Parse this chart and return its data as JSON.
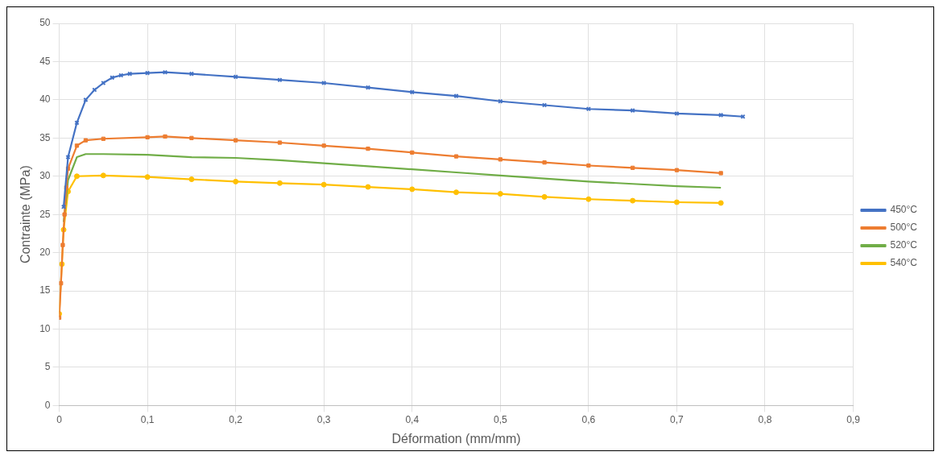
{
  "chart_data": {
    "type": "line",
    "xlabel": "Déformation (mm/mm)",
    "ylabel": "Contrainte (MPa)",
    "xlim": [
      0,
      0.9
    ],
    "ylim": [
      0,
      50
    ],
    "xticks": [
      0,
      {
        "value": 0.1,
        "label": "0,1"
      },
      {
        "value": 0.2,
        "label": "0,2"
      },
      {
        "value": 0.3,
        "label": "0,3"
      },
      {
        "value": 0.4,
        "label": "0,4"
      },
      {
        "value": 0.5,
        "label": "0,5"
      },
      {
        "value": 0.6,
        "label": "0,6"
      },
      {
        "value": 0.7,
        "label": "0,7"
      },
      {
        "value": 0.8,
        "label": "0,8"
      },
      {
        "value": 0.9,
        "label": "0,9"
      }
    ],
    "yticks": [
      0,
      5,
      10,
      15,
      20,
      25,
      30,
      35,
      40,
      45,
      50
    ],
    "grid": true,
    "legend": "right",
    "series": [
      {
        "name": "450°C",
        "color": "#4472c4",
        "marker": "cross",
        "x": [
          0.005,
          0.01,
          0.02,
          0.03,
          0.04,
          0.05,
          0.06,
          0.07,
          0.08,
          0.1,
          0.12,
          0.15,
          0.2,
          0.25,
          0.3,
          0.35,
          0.4,
          0.45,
          0.5,
          0.55,
          0.6,
          0.65,
          0.7,
          0.75,
          0.775
        ],
        "values": [
          26,
          32.5,
          37,
          40,
          41.3,
          42.2,
          42.9,
          43.2,
          43.4,
          43.5,
          43.6,
          43.4,
          43,
          42.6,
          42.2,
          41.6,
          41,
          40.5,
          39.8,
          39.3,
          38.8,
          38.6,
          38.2,
          38,
          37.8
        ]
      },
      {
        "name": "500°C",
        "color": "#ed7d31",
        "marker": "square",
        "x": [
          0,
          0.002,
          0.004,
          0.006,
          0.008,
          0.01,
          0.02,
          0.03,
          0.05,
          0.1,
          0.12,
          0.15,
          0.2,
          0.25,
          0.3,
          0.35,
          0.4,
          0.45,
          0.5,
          0.55,
          0.6,
          0.65,
          0.7,
          0.75
        ],
        "values": [
          11.5,
          16,
          21,
          25,
          28.5,
          31,
          34,
          34.7,
          34.9,
          35.1,
          35.2,
          35,
          34.7,
          34.4,
          34,
          33.6,
          33.1,
          32.6,
          32.2,
          31.8,
          31.4,
          31.1,
          30.8,
          30.4
        ]
      },
      {
        "name": "520°C",
        "color": "#70ad47",
        "marker": "none",
        "x": [
          0.005,
          0.01,
          0.02,
          0.03,
          0.05,
          0.1,
          0.15,
          0.2,
          0.25,
          0.3,
          0.35,
          0.4,
          0.45,
          0.5,
          0.55,
          0.6,
          0.65,
          0.7,
          0.75
        ],
        "values": [
          24,
          29.5,
          32.5,
          32.9,
          32.9,
          32.8,
          32.5,
          32.4,
          32.1,
          31.7,
          31.3,
          30.9,
          30.5,
          30.1,
          29.7,
          29.3,
          29,
          28.7,
          28.5
        ]
      },
      {
        "name": "540°C",
        "color": "#ffc000",
        "marker": "circle",
        "x": [
          0,
          0.003,
          0.005,
          0.01,
          0.02,
          0.05,
          0.1,
          0.15,
          0.2,
          0.25,
          0.3,
          0.35,
          0.4,
          0.45,
          0.5,
          0.55,
          0.6,
          0.65,
          0.7,
          0.75
        ],
        "values": [
          12,
          18.5,
          23,
          28,
          30,
          30.1,
          29.9,
          29.6,
          29.3,
          29.1,
          28.9,
          28.6,
          28.3,
          27.9,
          27.7,
          27.3,
          27,
          26.8,
          26.6,
          26.5
        ]
      }
    ]
  }
}
